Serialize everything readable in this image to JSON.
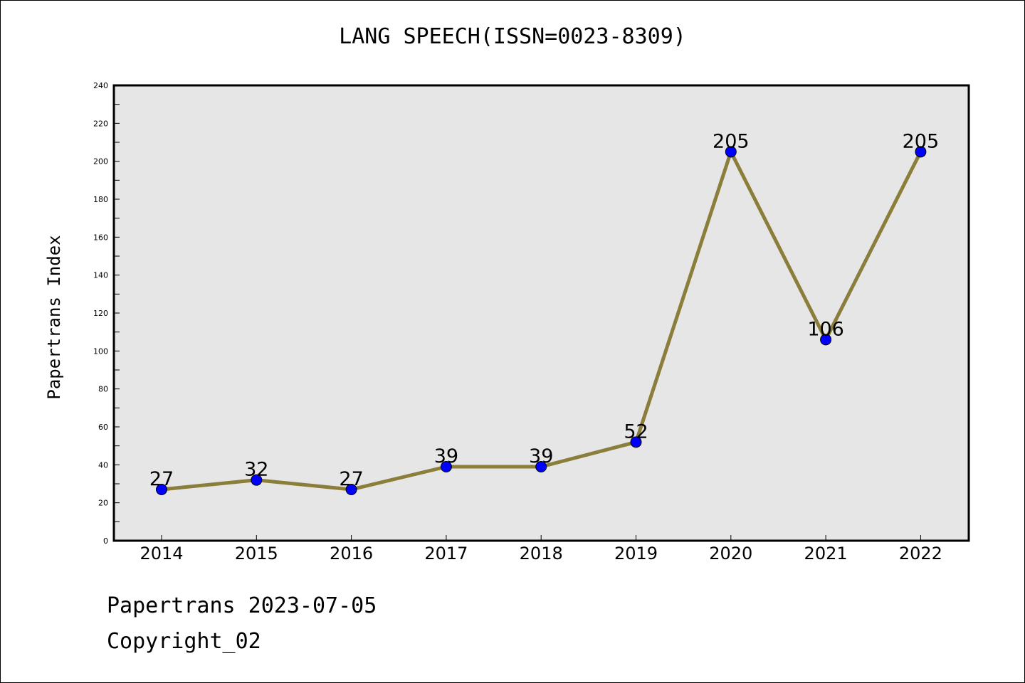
{
  "chart_data": {
    "type": "line",
    "title": "LANG SPEECH(ISSN=0023-8309)",
    "xlabel": "",
    "ylabel": "Papertrans Index",
    "categories": [
      "2014",
      "2015",
      "2016",
      "2017",
      "2018",
      "2019",
      "2020",
      "2021",
      "2022"
    ],
    "values": [
      27,
      32,
      27,
      39,
      39,
      52,
      205,
      106,
      205
    ],
    "data_labels": [
      "27",
      "32",
      "27",
      "39",
      "39",
      "52",
      "205",
      "106",
      "205"
    ],
    "ylim": [
      0,
      240
    ],
    "y_ticks": [
      "0",
      "20",
      "40",
      "60",
      "80",
      "100",
      "120",
      "140",
      "160",
      "180",
      "200",
      "220",
      "240"
    ],
    "grid": false,
    "line_color": "#8b7d3a",
    "marker_color": "#0000ff",
    "plot_background": "#e6e6e6"
  },
  "footer": {
    "date_text": "Papertrans 2023-07-05",
    "copyright_text": "Copyright_02"
  }
}
